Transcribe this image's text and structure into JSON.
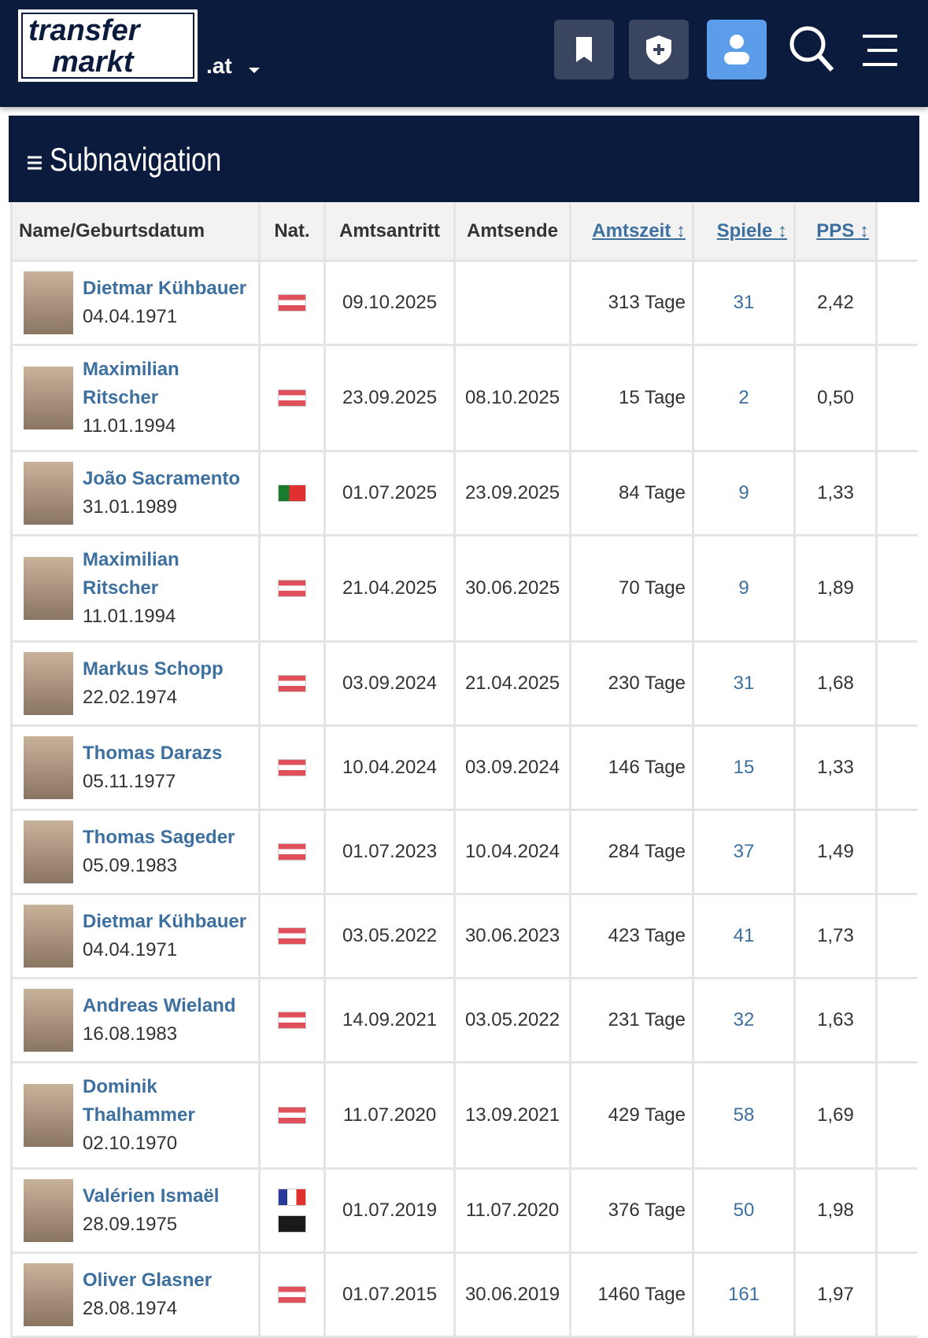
{
  "header": {
    "logo_line1": "transfer",
    "logo_line2": "markt",
    "domain": ".at"
  },
  "subnavigation": "Subnavigation",
  "table": {
    "columns": [
      "Name/Geburtsdatum",
      "Nat.",
      "Amtsantritt",
      "Amtsende",
      "Amtszeit",
      "Spiele",
      "PPS"
    ],
    "rows": [
      {
        "name": "Dietmar Kühbauer",
        "born": "04.04.1971",
        "start": "09.10.2025",
        "end": null,
        "tenure": "313 Tage",
        "games": 31,
        "pps": "2,42"
      },
      {
        "name": "Maximilian Ritscher",
        "born": "11.01.1994",
        "start": "23.09.2025",
        "end": "08.10.2025",
        "tenure": "15 Tage",
        "games": 2,
        "pps": "0,50"
      },
      {
        "name": "João Sacramento",
        "born": "31.01.1989",
        "start": "01.07.2025",
        "end": "23.09.2025",
        "tenure": "84 Tage",
        "games": 9,
        "pps": "1,33"
      },
      {
        "name": "Maximilian Ritscher",
        "born": "11.01.1994",
        "start": "21.04.2025",
        "end": "30.06.2025",
        "tenure": "70 Tage",
        "games": 9,
        "pps": "1,89"
      },
      {
        "name": "Markus Schopp",
        "born": "22.02.1974",
        "start": "03.09.2024",
        "end": "21.04.2025",
        "tenure": "230 Tage",
        "games": 31,
        "pps": "1,68"
      },
      {
        "name": "Thomas Darazs",
        "born": "05.11.1977",
        "start": "10.04.2024",
        "end": "03.09.2024",
        "tenure": "146 Tage",
        "games": 15,
        "pps": "1,33"
      },
      {
        "name": "Thomas Sageder",
        "born": "05.09.1983",
        "start": "01.07.2023",
        "end": "10.04.2024",
        "tenure": "284 Tage",
        "games": 37,
        "pps": "1,49"
      },
      {
        "name": "Dietmar Kühbauer",
        "born": "04.04.1971",
        "start": "03.05.2022",
        "end": "30.06.2023",
        "tenure": "423 Tage",
        "games": 41,
        "pps": "1,73"
      },
      {
        "name": "Andreas Wieland",
        "born": "16.08.1983",
        "start": "14.09.2021",
        "end": "03.05.2022",
        "tenure": "231 Tage",
        "games": 32,
        "pps": "1,63"
      },
      {
        "name": "Dominik Thalhammer",
        "born": "02.10.1970",
        "start": "11.07.2020",
        "end": "13.09.2021",
        "tenure": "429 Tage",
        "games": 58,
        "pps": "1,69"
      },
      {
        "name": "Valérien Ismaël",
        "born": "28.09.1975",
        "start": "01.07.2019",
        "end": "11.07.2020",
        "tenure": "376 Tage",
        "games": 50,
        "pps": "1,98"
      },
      {
        "name": "Oliver Glasner",
        "born": "28.08.1974",
        "start": "01.07.2015",
        "end": "30.06.2019",
        "tenure": "1460 Tage",
        "games": 161,
        "pps": "1,97"
      }
    ]
  }
}
